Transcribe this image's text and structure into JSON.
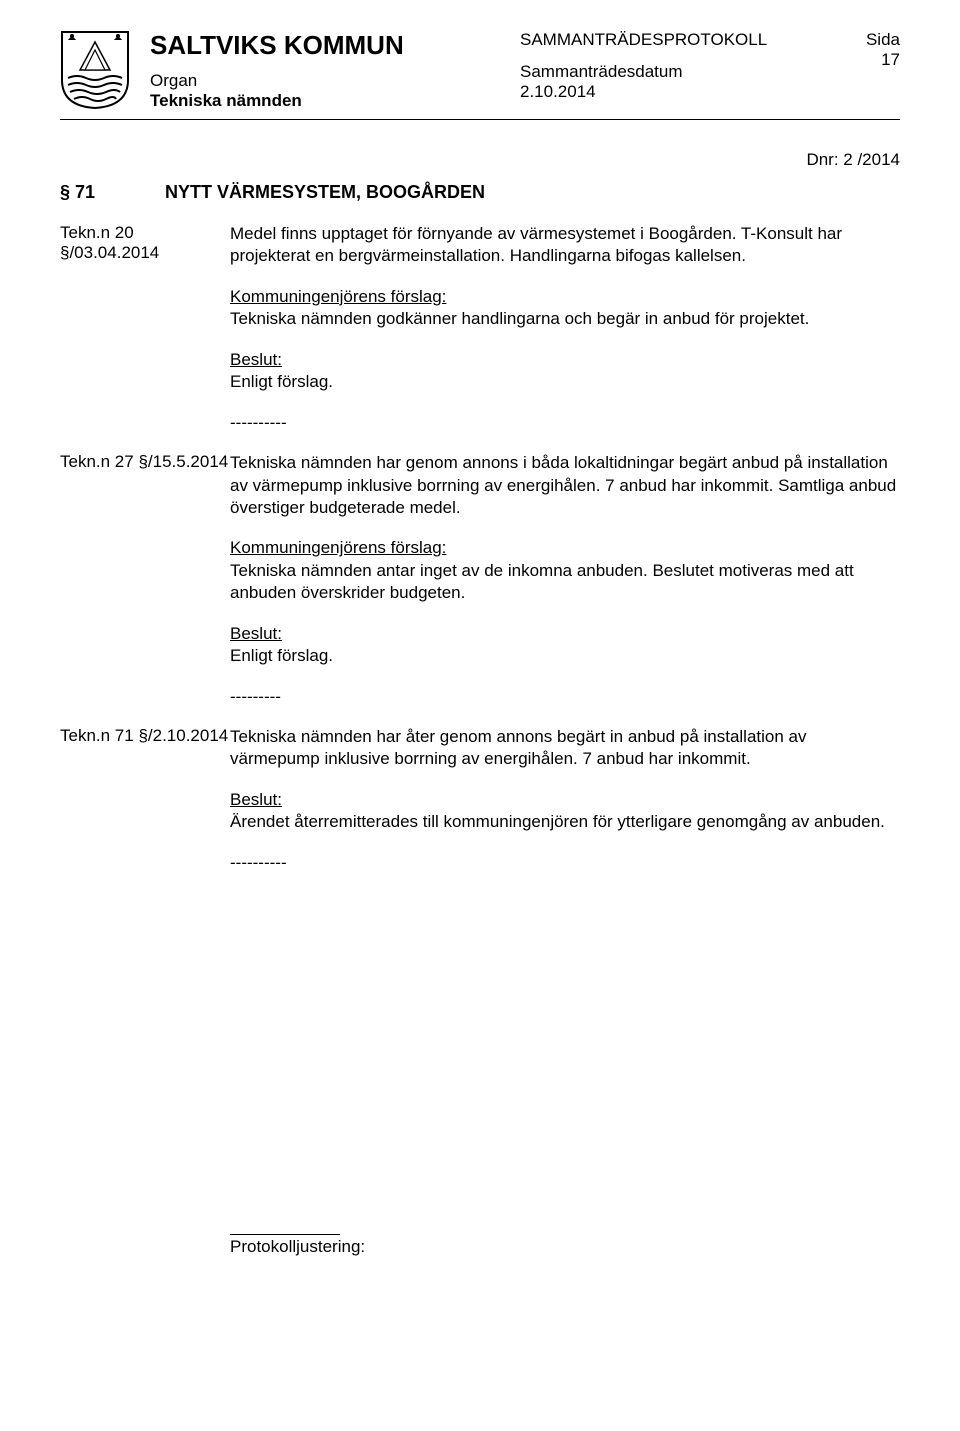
{
  "header": {
    "kommun": "SALTVIKS KOMMUN",
    "organ_label": "Organ",
    "organ_name": "Tekniska nämnden",
    "protokoll": "SAMMANTRÄDESPROTOKOLL",
    "date_label": "Sammanträdesdatum",
    "date_value": "2.10.2014",
    "sida_label": "Sida",
    "sida_num": "17"
  },
  "dnr": "Dnr: 2 /2014",
  "section": {
    "num": "§ 71",
    "title": "NYTT VÄRMESYSTEM, BOOGÅRDEN"
  },
  "entries": [
    {
      "label": "Tekn.n 20 §/03.04.2014",
      "paragraphs": [
        {
          "text": "Medel finns upptaget för förnyande av värmesystemet i Boogården. T-Konsult har projekterat en bergvärmeinstallation. Handlingarna bifogas kallelsen."
        },
        {
          "sub": "Kommuningenjörens förslag:",
          "text": "Tekniska nämnden godkänner handlingarna och begär in anbud för projektet."
        },
        {
          "sub": "Beslut:",
          "text": "Enligt förslag."
        },
        {
          "text": "----------"
        }
      ]
    },
    {
      "label": "Tekn.n 27 §/15.5.2014",
      "paragraphs": [
        {
          "text": "Tekniska nämnden har genom annons i båda lokaltidningar begärt anbud på installation av värmepump inklusive borrning av energihålen. 7 anbud har inkommit. Samtliga anbud överstiger budgeterade medel."
        },
        {
          "sub": "Kommuningenjörens förslag:",
          "text": "Tekniska nämnden antar inget av de inkomna anbuden. Beslutet motiveras med att anbuden överskrider budgeten."
        },
        {
          "sub": "Beslut:",
          "text": "Enligt förslag."
        },
        {
          "text": "---------"
        }
      ]
    },
    {
      "label": "Tekn.n 71 §/2.10.2014",
      "paragraphs": [
        {
          "text": "Tekniska nämnden har åter genom annons begärt in anbud på installation av värmepump inklusive borrning av energihålen. 7 anbud har inkommit."
        },
        {
          "sub": "Beslut:",
          "text": "Ärendet återremitterades till kommuningenjören för ytterligare genomgång av anbuden."
        },
        {
          "text": "----------"
        }
      ]
    }
  ],
  "footer": "Protokolljustering:"
}
